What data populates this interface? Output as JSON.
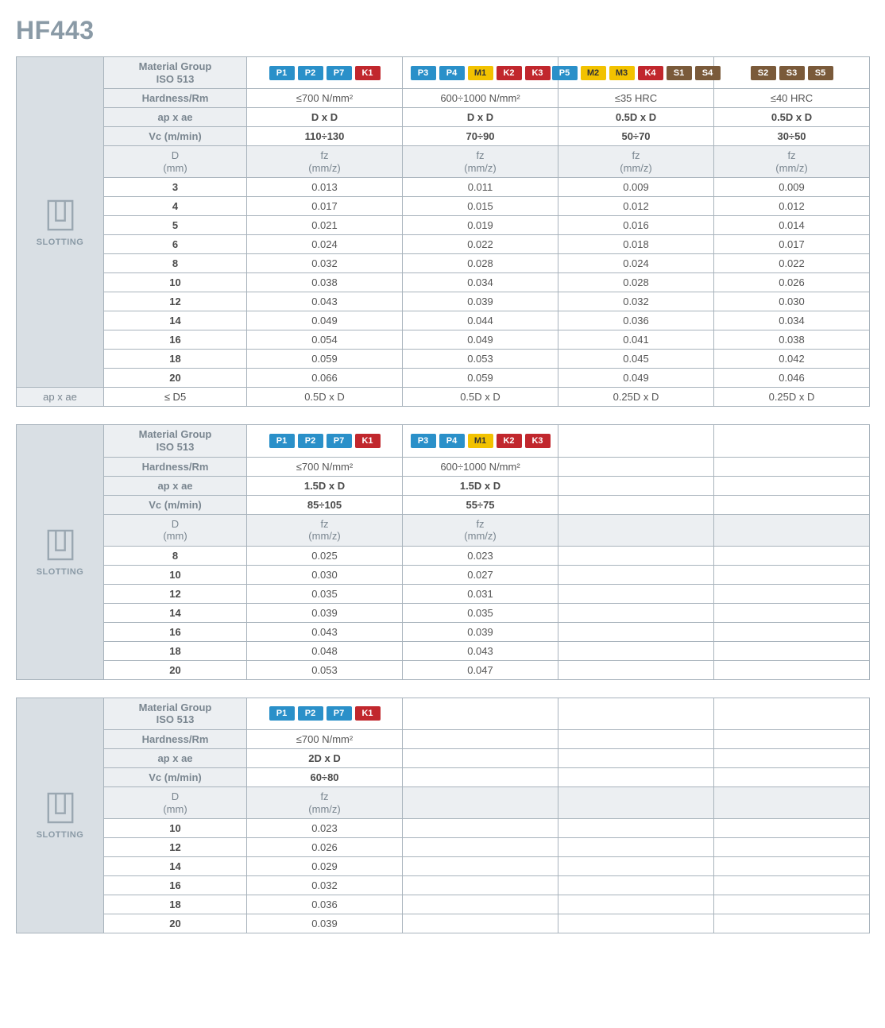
{
  "title": "HF443",
  "labels": {
    "material": "Material Group\nISO 513",
    "hardness": "Hardness/Rm",
    "apae": "ap x ae",
    "vc": "Vc (m/min)",
    "D": "D\n(mm)",
    "fz": "fz\n(mm/z)",
    "slot": "SLOTTING",
    "footer_apae": "ap x ae",
    "footer_d5": "≤ D5"
  },
  "tables": [
    {
      "cols": 4,
      "badges": [
        [
          "P1",
          "P2",
          "P7",
          "K1"
        ],
        [
          "P3",
          "P4",
          "M1",
          "K2",
          "K3"
        ],
        [
          "P5",
          "M2",
          "M3",
          "K4",
          "S1",
          "S4"
        ],
        [
          "S2",
          "S3",
          "S5"
        ]
      ],
      "hardness": [
        "≤700 N/mm²",
        "600÷1000 N/mm²",
        "≤35 HRC",
        "≤40 HRC"
      ],
      "apae": [
        "D x D",
        "D x D",
        "0.5D x D",
        "0.5D x D"
      ],
      "vc": [
        "110÷130",
        "70÷90",
        "50÷70",
        "30÷50"
      ],
      "D": [
        "3",
        "4",
        "5",
        "6",
        "8",
        "10",
        "12",
        "14",
        "16",
        "18",
        "20"
      ],
      "fz": [
        [
          "0.013",
          "0.011",
          "0.009",
          "0.009"
        ],
        [
          "0.017",
          "0.015",
          "0.012",
          "0.012"
        ],
        [
          "0.021",
          "0.019",
          "0.016",
          "0.014"
        ],
        [
          "0.024",
          "0.022",
          "0.018",
          "0.017"
        ],
        [
          "0.032",
          "0.028",
          "0.024",
          "0.022"
        ],
        [
          "0.038",
          "0.034",
          "0.028",
          "0.026"
        ],
        [
          "0.043",
          "0.039",
          "0.032",
          "0.030"
        ],
        [
          "0.049",
          "0.044",
          "0.036",
          "0.034"
        ],
        [
          "0.054",
          "0.049",
          "0.041",
          "0.038"
        ],
        [
          "0.059",
          "0.053",
          "0.045",
          "0.042"
        ],
        [
          "0.066",
          "0.059",
          "0.049",
          "0.046"
        ]
      ],
      "footer": [
        "0.5D x D",
        "0.5D x D",
        "0.25D x D",
        "0.25D x D"
      ]
    },
    {
      "cols": 4,
      "badges": [
        [
          "P1",
          "P2",
          "P7",
          "K1"
        ],
        [
          "P3",
          "P4",
          "M1",
          "K2",
          "K3"
        ],
        [],
        []
      ],
      "hardness": [
        "≤700 N/mm²",
        "600÷1000 N/mm²",
        "",
        ""
      ],
      "apae": [
        "1.5D x D",
        "1.5D x D",
        "",
        ""
      ],
      "vc": [
        "85÷105",
        "55÷75",
        "",
        ""
      ],
      "D": [
        "8",
        "10",
        "12",
        "14",
        "16",
        "18",
        "20"
      ],
      "fz": [
        [
          "0.025",
          "0.023",
          "",
          ""
        ],
        [
          "0.030",
          "0.027",
          "",
          ""
        ],
        [
          "0.035",
          "0.031",
          "",
          ""
        ],
        [
          "0.039",
          "0.035",
          "",
          ""
        ],
        [
          "0.043",
          "0.039",
          "",
          ""
        ],
        [
          "0.048",
          "0.043",
          "",
          ""
        ],
        [
          "0.053",
          "0.047",
          "",
          ""
        ]
      ]
    },
    {
      "cols": 4,
      "badges": [
        [
          "P1",
          "P2",
          "P7",
          "K1"
        ],
        [],
        [],
        []
      ],
      "hardness": [
        "≤700 N/mm²",
        "",
        "",
        ""
      ],
      "apae": [
        "2D x D",
        "",
        "",
        ""
      ],
      "vc": [
        "60÷80",
        "",
        "",
        ""
      ],
      "D": [
        "10",
        "12",
        "14",
        "16",
        "18",
        "20"
      ],
      "fz": [
        [
          "0.023",
          "",
          "",
          ""
        ],
        [
          "0.026",
          "",
          "",
          ""
        ],
        [
          "0.029",
          "",
          "",
          ""
        ],
        [
          "0.032",
          "",
          "",
          ""
        ],
        [
          "0.036",
          "",
          "",
          ""
        ],
        [
          "0.039",
          "",
          "",
          ""
        ]
      ]
    }
  ]
}
